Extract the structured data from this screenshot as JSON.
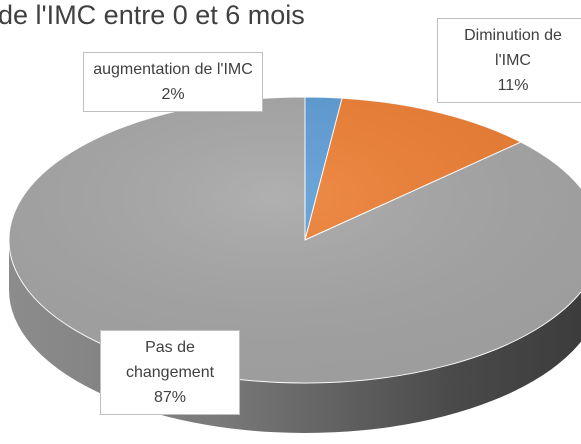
{
  "chart_data": {
    "type": "pie",
    "title": "de l'IMC entre 0 et 6 mois",
    "categories": [
      "augmentation de l'IMC",
      "Diminution de l'IMC",
      "Pas de changement"
    ],
    "values": [
      2,
      11,
      87
    ],
    "value_labels": [
      "2%",
      "11%",
      "87%"
    ],
    "colors": [
      "#5b9bd5",
      "#ed7d31",
      "#a5a5a5"
    ]
  }
}
